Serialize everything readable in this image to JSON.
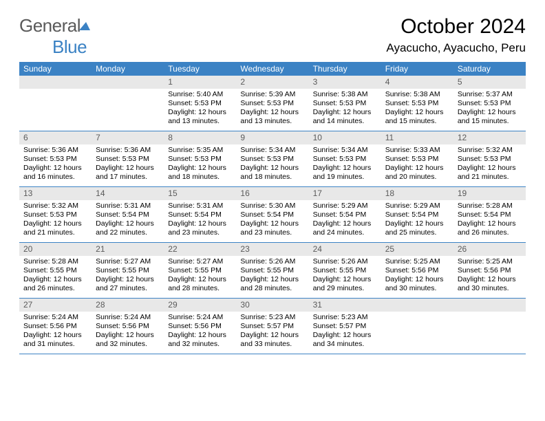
{
  "logo": {
    "text1": "General",
    "text2": "Blue"
  },
  "title": "October 2024",
  "location": "Ayacucho, Ayacucho, Peru",
  "header_bg": "#3b82c4",
  "daynum_bg": "#e8e8e8",
  "dayNames": [
    "Sunday",
    "Monday",
    "Tuesday",
    "Wednesday",
    "Thursday",
    "Friday",
    "Saturday"
  ],
  "weeks": [
    [
      null,
      null,
      {
        "n": "1",
        "sr": "Sunrise: 5:40 AM",
        "ss": "Sunset: 5:53 PM",
        "dl1": "Daylight: 12 hours",
        "dl2": "and 13 minutes."
      },
      {
        "n": "2",
        "sr": "Sunrise: 5:39 AM",
        "ss": "Sunset: 5:53 PM",
        "dl1": "Daylight: 12 hours",
        "dl2": "and 13 minutes."
      },
      {
        "n": "3",
        "sr": "Sunrise: 5:38 AM",
        "ss": "Sunset: 5:53 PM",
        "dl1": "Daylight: 12 hours",
        "dl2": "and 14 minutes."
      },
      {
        "n": "4",
        "sr": "Sunrise: 5:38 AM",
        "ss": "Sunset: 5:53 PM",
        "dl1": "Daylight: 12 hours",
        "dl2": "and 15 minutes."
      },
      {
        "n": "5",
        "sr": "Sunrise: 5:37 AM",
        "ss": "Sunset: 5:53 PM",
        "dl1": "Daylight: 12 hours",
        "dl2": "and 15 minutes."
      }
    ],
    [
      {
        "n": "6",
        "sr": "Sunrise: 5:36 AM",
        "ss": "Sunset: 5:53 PM",
        "dl1": "Daylight: 12 hours",
        "dl2": "and 16 minutes."
      },
      {
        "n": "7",
        "sr": "Sunrise: 5:36 AM",
        "ss": "Sunset: 5:53 PM",
        "dl1": "Daylight: 12 hours",
        "dl2": "and 17 minutes."
      },
      {
        "n": "8",
        "sr": "Sunrise: 5:35 AM",
        "ss": "Sunset: 5:53 PM",
        "dl1": "Daylight: 12 hours",
        "dl2": "and 18 minutes."
      },
      {
        "n": "9",
        "sr": "Sunrise: 5:34 AM",
        "ss": "Sunset: 5:53 PM",
        "dl1": "Daylight: 12 hours",
        "dl2": "and 18 minutes."
      },
      {
        "n": "10",
        "sr": "Sunrise: 5:34 AM",
        "ss": "Sunset: 5:53 PM",
        "dl1": "Daylight: 12 hours",
        "dl2": "and 19 minutes."
      },
      {
        "n": "11",
        "sr": "Sunrise: 5:33 AM",
        "ss": "Sunset: 5:53 PM",
        "dl1": "Daylight: 12 hours",
        "dl2": "and 20 minutes."
      },
      {
        "n": "12",
        "sr": "Sunrise: 5:32 AM",
        "ss": "Sunset: 5:53 PM",
        "dl1": "Daylight: 12 hours",
        "dl2": "and 21 minutes."
      }
    ],
    [
      {
        "n": "13",
        "sr": "Sunrise: 5:32 AM",
        "ss": "Sunset: 5:53 PM",
        "dl1": "Daylight: 12 hours",
        "dl2": "and 21 minutes."
      },
      {
        "n": "14",
        "sr": "Sunrise: 5:31 AM",
        "ss": "Sunset: 5:54 PM",
        "dl1": "Daylight: 12 hours",
        "dl2": "and 22 minutes."
      },
      {
        "n": "15",
        "sr": "Sunrise: 5:31 AM",
        "ss": "Sunset: 5:54 PM",
        "dl1": "Daylight: 12 hours",
        "dl2": "and 23 minutes."
      },
      {
        "n": "16",
        "sr": "Sunrise: 5:30 AM",
        "ss": "Sunset: 5:54 PM",
        "dl1": "Daylight: 12 hours",
        "dl2": "and 23 minutes."
      },
      {
        "n": "17",
        "sr": "Sunrise: 5:29 AM",
        "ss": "Sunset: 5:54 PM",
        "dl1": "Daylight: 12 hours",
        "dl2": "and 24 minutes."
      },
      {
        "n": "18",
        "sr": "Sunrise: 5:29 AM",
        "ss": "Sunset: 5:54 PM",
        "dl1": "Daylight: 12 hours",
        "dl2": "and 25 minutes."
      },
      {
        "n": "19",
        "sr": "Sunrise: 5:28 AM",
        "ss": "Sunset: 5:54 PM",
        "dl1": "Daylight: 12 hours",
        "dl2": "and 26 minutes."
      }
    ],
    [
      {
        "n": "20",
        "sr": "Sunrise: 5:28 AM",
        "ss": "Sunset: 5:55 PM",
        "dl1": "Daylight: 12 hours",
        "dl2": "and 26 minutes."
      },
      {
        "n": "21",
        "sr": "Sunrise: 5:27 AM",
        "ss": "Sunset: 5:55 PM",
        "dl1": "Daylight: 12 hours",
        "dl2": "and 27 minutes."
      },
      {
        "n": "22",
        "sr": "Sunrise: 5:27 AM",
        "ss": "Sunset: 5:55 PM",
        "dl1": "Daylight: 12 hours",
        "dl2": "and 28 minutes."
      },
      {
        "n": "23",
        "sr": "Sunrise: 5:26 AM",
        "ss": "Sunset: 5:55 PM",
        "dl1": "Daylight: 12 hours",
        "dl2": "and 28 minutes."
      },
      {
        "n": "24",
        "sr": "Sunrise: 5:26 AM",
        "ss": "Sunset: 5:55 PM",
        "dl1": "Daylight: 12 hours",
        "dl2": "and 29 minutes."
      },
      {
        "n": "25",
        "sr": "Sunrise: 5:25 AM",
        "ss": "Sunset: 5:56 PM",
        "dl1": "Daylight: 12 hours",
        "dl2": "and 30 minutes."
      },
      {
        "n": "26",
        "sr": "Sunrise: 5:25 AM",
        "ss": "Sunset: 5:56 PM",
        "dl1": "Daylight: 12 hours",
        "dl2": "and 30 minutes."
      }
    ],
    [
      {
        "n": "27",
        "sr": "Sunrise: 5:24 AM",
        "ss": "Sunset: 5:56 PM",
        "dl1": "Daylight: 12 hours",
        "dl2": "and 31 minutes."
      },
      {
        "n": "28",
        "sr": "Sunrise: 5:24 AM",
        "ss": "Sunset: 5:56 PM",
        "dl1": "Daylight: 12 hours",
        "dl2": "and 32 minutes."
      },
      {
        "n": "29",
        "sr": "Sunrise: 5:24 AM",
        "ss": "Sunset: 5:56 PM",
        "dl1": "Daylight: 12 hours",
        "dl2": "and 32 minutes."
      },
      {
        "n": "30",
        "sr": "Sunrise: 5:23 AM",
        "ss": "Sunset: 5:57 PM",
        "dl1": "Daylight: 12 hours",
        "dl2": "and 33 minutes."
      },
      {
        "n": "31",
        "sr": "Sunrise: 5:23 AM",
        "ss": "Sunset: 5:57 PM",
        "dl1": "Daylight: 12 hours",
        "dl2": "and 34 minutes."
      },
      null,
      null
    ]
  ]
}
